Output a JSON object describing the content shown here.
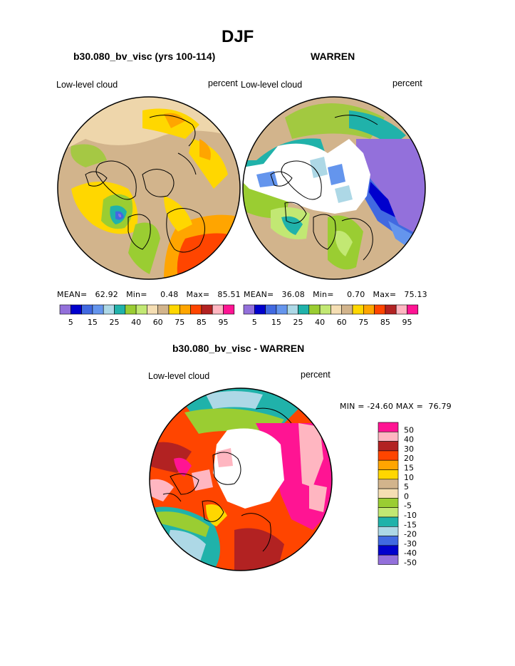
{
  "season_title": "DJF",
  "panels": {
    "left": {
      "title": "b30.080_bv_visc (yrs 100-114)",
      "variable": "Low-level cloud",
      "units": "percent",
      "mean_label": "MEAN=",
      "mean_value": "62.92",
      "min_label": "Min=",
      "min_value": "0.48",
      "max_label": "Max=",
      "max_value": "85.51"
    },
    "right": {
      "title": "WARREN",
      "variable": "Low-level cloud",
      "units": "percent",
      "mean_label": "MEAN=",
      "mean_value": "36.08",
      "min_label": "Min=",
      "min_value": "0.70",
      "max_label": "Max=",
      "max_value": "75.13"
    },
    "diff": {
      "title": "b30.080_bv_visc - WARREN",
      "variable": "Low-level cloud",
      "units": "percent",
      "minmax_text": "MIN = -24.60 MAX =  76.79"
    }
  },
  "abs_colorbar": {
    "colors": [
      "#9370db",
      "#0000cd",
      "#4169e1",
      "#6495ed",
      "#add8e6",
      "#20b2aa",
      "#9acd32",
      "#c2e873",
      "#f5deb3",
      "#d2b48c",
      "#ffd700",
      "#ffa500",
      "#ff4500",
      "#b22222",
      "#ffb6c1",
      "#ff1493"
    ],
    "tick_labels": [
      "5",
      "15",
      "25",
      "40",
      "60",
      "75",
      "85",
      "95"
    ]
  },
  "diff_colorbar": {
    "colors": [
      "#ff1493",
      "#ffb6c1",
      "#b22222",
      "#ff4500",
      "#ffa500",
      "#ffd700",
      "#d2b48c",
      "#f5deb3",
      "#9acd32",
      "#c2e873",
      "#20b2aa",
      "#add8e6",
      "#4169e1",
      "#0000cd",
      "#9370db"
    ],
    "tick_labels": [
      "50",
      "40",
      "30",
      "20",
      "15",
      "10",
      "5",
      "0",
      "-5",
      "-10",
      "-15",
      "-20",
      "-30",
      "-40",
      "-50"
    ]
  },
  "map_colors": {
    "ocean_base": "#d2b48c",
    "land_line": "#000000",
    "missing": "#ffffff"
  }
}
